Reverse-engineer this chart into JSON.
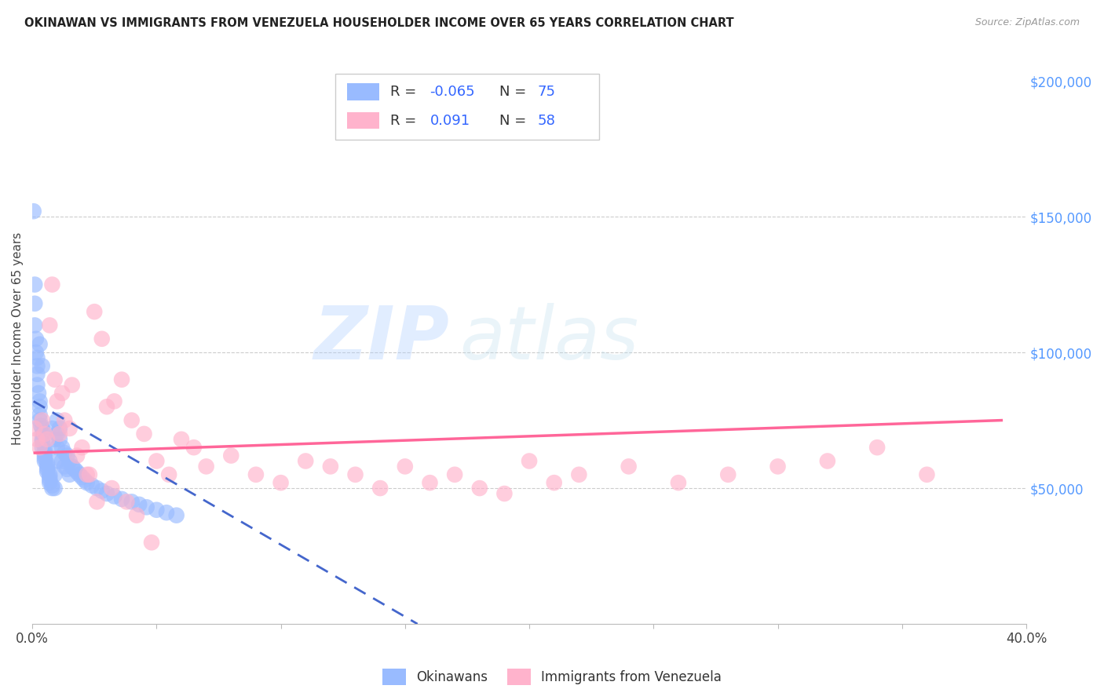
{
  "title": "OKINAWAN VS IMMIGRANTS FROM VENEZUELA HOUSEHOLDER INCOME OVER 65 YEARS CORRELATION CHART",
  "source": "Source: ZipAtlas.com",
  "ylabel": "Householder Income Over 65 years",
  "xlim": [
    0.0,
    0.4
  ],
  "ylim": [
    0,
    210000
  ],
  "right_yticks": [
    50000,
    100000,
    150000,
    200000
  ],
  "right_yticklabels": [
    "$50,000",
    "$100,000",
    "$150,000",
    "$200,000"
  ],
  "xticks": [
    0.0,
    0.05,
    0.1,
    0.15,
    0.2,
    0.25,
    0.3,
    0.35,
    0.4
  ],
  "watermark_zip": "ZIP",
  "watermark_atlas": "atlas",
  "blue_color": "#99BBFF",
  "pink_color": "#FFB3CC",
  "blue_line_color": "#4466CC",
  "pink_line_color": "#FF6699",
  "okinawan_x": [
    0.0005,
    0.001,
    0.001,
    0.001,
    0.0015,
    0.0015,
    0.002,
    0.002,
    0.002,
    0.002,
    0.0025,
    0.003,
    0.003,
    0.003,
    0.003,
    0.0035,
    0.004,
    0.004,
    0.004,
    0.004,
    0.004,
    0.005,
    0.005,
    0.005,
    0.005,
    0.005,
    0.006,
    0.006,
    0.006,
    0.006,
    0.007,
    0.007,
    0.007,
    0.007,
    0.008,
    0.008,
    0.008,
    0.009,
    0.009,
    0.009,
    0.01,
    0.01,
    0.01,
    0.01,
    0.011,
    0.011,
    0.012,
    0.012,
    0.013,
    0.013,
    0.014,
    0.014,
    0.015,
    0.015,
    0.016,
    0.017,
    0.018,
    0.019,
    0.02,
    0.021,
    0.022,
    0.024,
    0.026,
    0.028,
    0.03,
    0.033,
    0.036,
    0.04,
    0.043,
    0.046,
    0.05,
    0.054,
    0.058,
    0.003,
    0.004
  ],
  "okinawan_y": [
    152000,
    125000,
    118000,
    110000,
    105000,
    100000,
    98000,
    95000,
    92000,
    88000,
    85000,
    82000,
    80000,
    77000,
    75000,
    73000,
    72000,
    70000,
    68000,
    67000,
    65000,
    64000,
    63000,
    62000,
    61000,
    60000,
    59000,
    58000,
    57000,
    56000,
    55000,
    54000,
    53000,
    52000,
    51000,
    50000,
    72000,
    68000,
    55000,
    50000,
    75000,
    70000,
    65000,
    60000,
    72000,
    68000,
    65000,
    60000,
    63000,
    58000,
    62000,
    57000,
    60000,
    55000,
    58000,
    57000,
    56000,
    55000,
    54000,
    53000,
    52000,
    51000,
    50000,
    49000,
    48000,
    47000,
    46000,
    45000,
    44000,
    43000,
    42000,
    41000,
    40000,
    103000,
    95000
  ],
  "venezuela_x": [
    0.001,
    0.002,
    0.003,
    0.004,
    0.005,
    0.006,
    0.007,
    0.008,
    0.009,
    0.01,
    0.011,
    0.012,
    0.013,
    0.015,
    0.016,
    0.018,
    0.02,
    0.022,
    0.025,
    0.028,
    0.03,
    0.033,
    0.036,
    0.04,
    0.045,
    0.05,
    0.055,
    0.06,
    0.065,
    0.07,
    0.08,
    0.09,
    0.1,
    0.11,
    0.12,
    0.13,
    0.14,
    0.15,
    0.16,
    0.17,
    0.18,
    0.19,
    0.2,
    0.21,
    0.22,
    0.24,
    0.26,
    0.28,
    0.3,
    0.32,
    0.34,
    0.36,
    0.023,
    0.026,
    0.032,
    0.038,
    0.042,
    0.048
  ],
  "venezuela_y": [
    72000,
    68000,
    65000,
    75000,
    70000,
    68000,
    110000,
    125000,
    90000,
    82000,
    70000,
    85000,
    75000,
    72000,
    88000,
    62000,
    65000,
    55000,
    115000,
    105000,
    80000,
    82000,
    90000,
    75000,
    70000,
    60000,
    55000,
    68000,
    65000,
    58000,
    62000,
    55000,
    52000,
    60000,
    58000,
    55000,
    50000,
    58000,
    52000,
    55000,
    50000,
    48000,
    60000,
    52000,
    55000,
    58000,
    52000,
    55000,
    58000,
    60000,
    65000,
    55000,
    55000,
    45000,
    50000,
    45000,
    40000,
    30000
  ],
  "blue_trend_x": [
    0.0005,
    0.155
  ],
  "blue_trend_y": [
    82000,
    0
  ],
  "pink_trend_x": [
    0.001,
    0.39
  ],
  "pink_trend_y": [
    63000,
    75000
  ]
}
